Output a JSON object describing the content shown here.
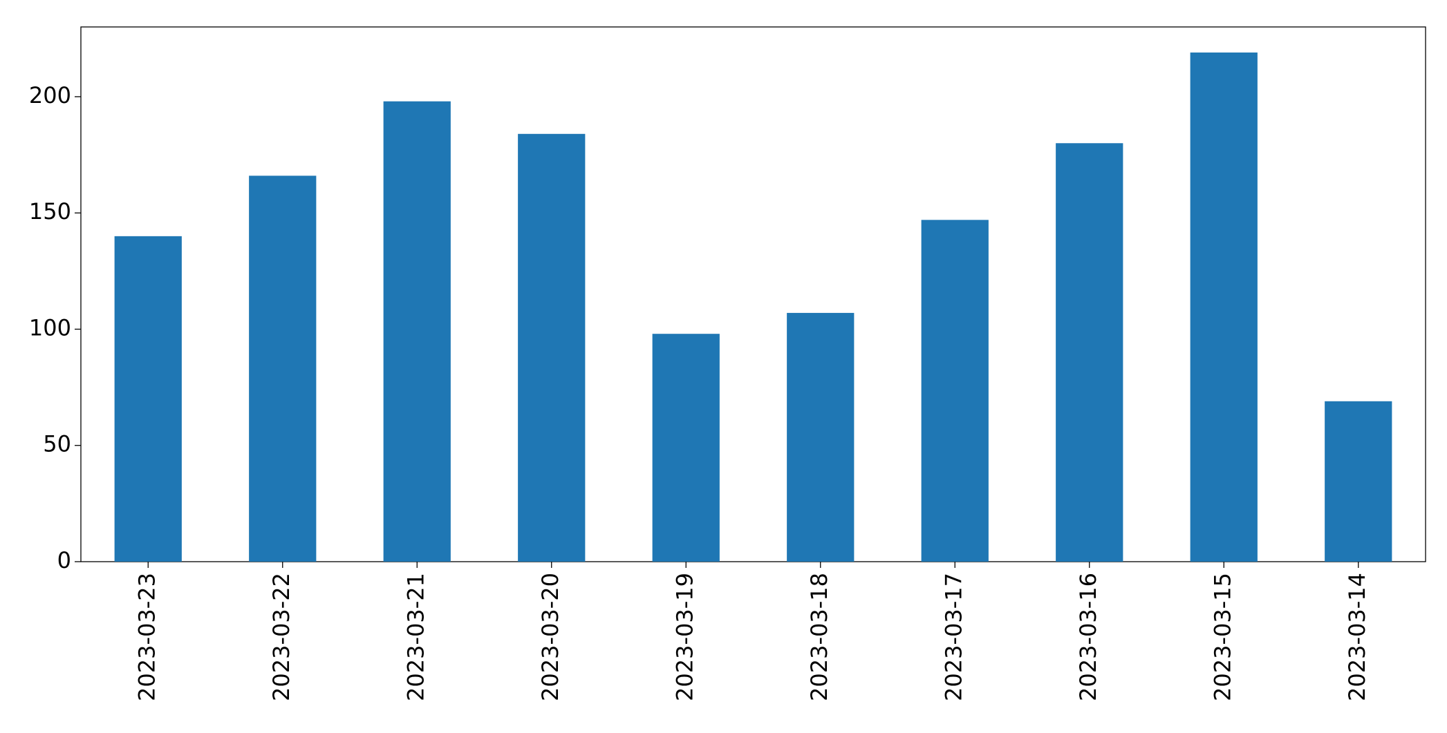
{
  "chart_data": {
    "type": "bar",
    "categories": [
      "2023-03-23",
      "2023-03-22",
      "2023-03-21",
      "2023-03-20",
      "2023-03-19",
      "2023-03-18",
      "2023-03-17",
      "2023-03-16",
      "2023-03-15",
      "2023-03-14"
    ],
    "values": [
      140,
      166,
      198,
      184,
      98,
      107,
      147,
      180,
      219,
      69
    ],
    "color": "#1f77b4",
    "ylim": [
      0,
      230
    ],
    "yticks": [
      0,
      50,
      100,
      150,
      200
    ],
    "grid": false
  }
}
